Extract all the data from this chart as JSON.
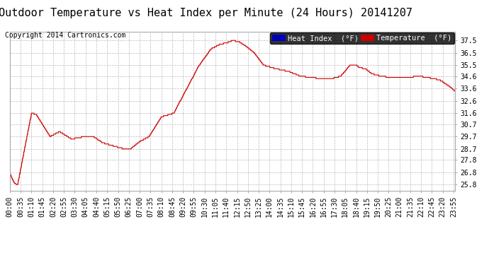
{
  "title": "Outdoor Temperature vs Heat Index per Minute (24 Hours) 20141207",
  "copyright": "Copyright 2014 Cartronics.com",
  "legend_heat_index": "Heat Index  (°F)",
  "legend_temperature": "Temperature  (°F)",
  "heat_index_color": "#0000bb",
  "temperature_color": "#cc0000",
  "line_color": "#cc0000",
  "background_color": "#ffffff",
  "plot_bg_color": "#ffffff",
  "grid_color": "#bbbbbb",
  "ylim": [
    25.3,
    38.2
  ],
  "yticks": [
    25.8,
    26.8,
    27.8,
    28.7,
    29.7,
    30.7,
    31.6,
    32.6,
    33.6,
    34.6,
    35.5,
    36.5,
    37.5
  ],
  "xtick_labels": [
    "00:00",
    "00:35",
    "01:10",
    "01:45",
    "02:20",
    "02:55",
    "03:30",
    "04:05",
    "04:40",
    "05:15",
    "05:50",
    "06:25",
    "07:00",
    "07:35",
    "08:10",
    "08:45",
    "09:20",
    "09:55",
    "10:30",
    "11:05",
    "11:40",
    "12:15",
    "12:50",
    "13:25",
    "14:00",
    "14:35",
    "15:10",
    "15:45",
    "16:20",
    "16:55",
    "17:30",
    "18:05",
    "18:40",
    "19:15",
    "19:50",
    "20:25",
    "21:00",
    "21:35",
    "22:10",
    "22:45",
    "23:20",
    "23:55"
  ],
  "title_fontsize": 11,
  "copyright_fontsize": 7,
  "tick_fontsize": 7,
  "legend_fontsize": 7.5
}
